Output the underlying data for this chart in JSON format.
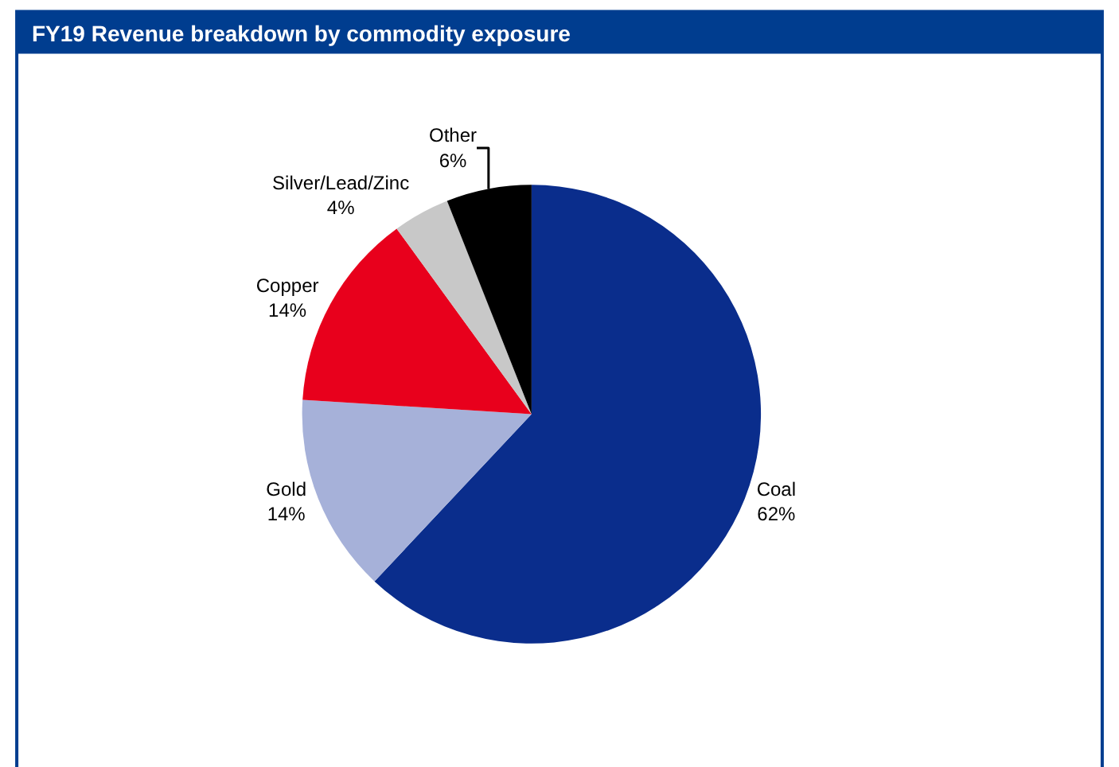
{
  "chart_data": {
    "type": "pie",
    "title": "FY19 Revenue breakdown by commodity exposure",
    "categories": [
      "Coal",
      "Gold",
      "Copper",
      "Silver/Lead/Zinc",
      "Other"
    ],
    "values": [
      62,
      14,
      14,
      4,
      6
    ],
    "colors": [
      "#0a2d8c",
      "#a6b1d9",
      "#e8001c",
      "#c8c8c8",
      "#000000"
    ],
    "value_labels": [
      "62%",
      "14%",
      "14%",
      "4%",
      "6%"
    ],
    "legend": false
  }
}
